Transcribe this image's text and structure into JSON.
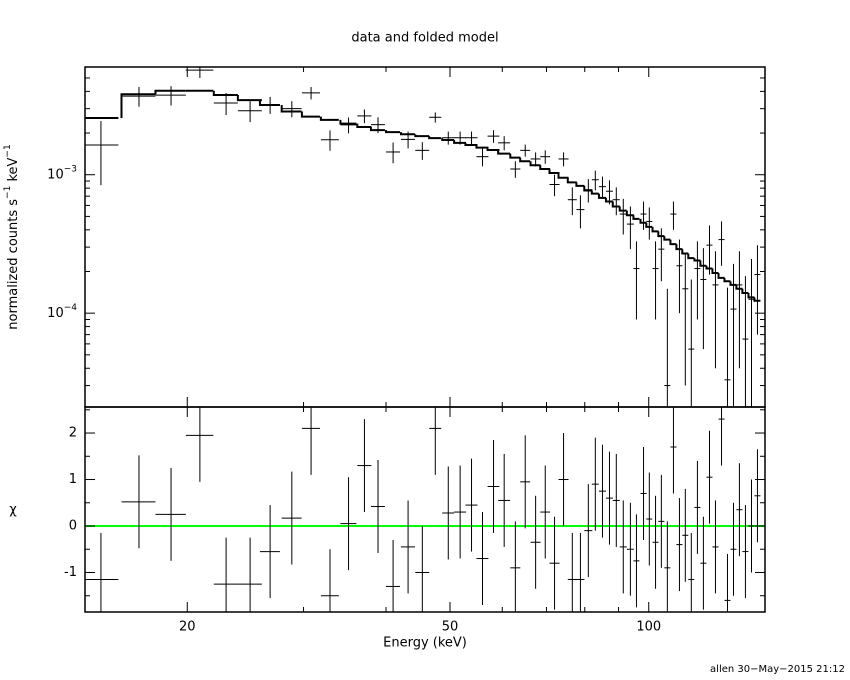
{
  "chart_data": [
    {
      "type": "errorbar",
      "title": "data and folded model",
      "ylabel": [
        "normalized counts s",
        "−1",
        " keV",
        "−1"
      ],
      "log_x": true,
      "log_y": true,
      "xlim": [
        14,
        150
      ],
      "ylim": [
        2.1e-05,
        0.006
      ],
      "yticks": [
        {
          "value": 0.001,
          "label": "10",
          "exponent": "−3"
        },
        {
          "value": 0.0001,
          "label": "10",
          "exponent": "−4"
        }
      ],
      "yminorticks": [
        3e-05,
        4e-05,
        5e-05,
        6e-05,
        7e-05,
        8e-05,
        9e-05,
        0.0002,
        0.0003,
        0.0004,
        0.0005,
        0.0006,
        0.0007,
        0.0008,
        0.0009,
        0.002,
        0.003,
        0.004,
        0.005
      ],
      "data_color": "#000000",
      "model_color": "#000000",
      "x": [
        14.8,
        16.9,
        18.9,
        20.9,
        22.9,
        24.9,
        26.7,
        28.8,
        30.8,
        32.9,
        35.1,
        37.1,
        38.9,
        41.0,
        43.2,
        45.4,
        47.5,
        49.7,
        51.8,
        53.9,
        56.0,
        58.2,
        60.4,
        62.8,
        65.0,
        67.4,
        69.7,
        72.0,
        74.3,
        76.6,
        78.8,
        81.0,
        83.0,
        85.1,
        87.2,
        89.3,
        91.5,
        93.8,
        95.8,
        98.2,
        100.2,
        102.4,
        104.5,
        106.7,
        109.0,
        111.3,
        113.6,
        116.0,
        118.5,
        121.0,
        123.6,
        126.2,
        128.9,
        131.6,
        134.4,
        137.2,
        140.1,
        143.1,
        146.1
      ],
      "xerr": [
        0.93,
        1.0,
        1.0,
        1.0,
        0.96,
        1.04,
        0.93,
        1.0,
        0.97,
        1.03,
        0.98,
        0.91,
        0.95,
        1.0,
        1.06,
        1.1,
        1.0,
        1.04,
        1.08,
        1.13,
        1.17,
        1.2,
        1.26,
        1.1,
        1.13,
        1.18,
        1.2,
        1.26,
        1.3,
        1.2,
        1.1,
        1.13,
        1.0,
        1.04,
        1.06,
        1.09,
        1.12,
        1.15,
        1.0,
        1.03,
        1.05,
        1.07,
        1.1,
        1.12,
        1.14,
        1.17,
        1.19,
        1.21,
        1.24,
        1.27,
        1.29,
        1.32,
        1.35,
        1.38,
        1.41,
        1.44,
        1.47,
        1.5,
        1.53
      ],
      "values": [
        0.00164,
        0.0037,
        0.00376,
        0.0057,
        0.0033,
        0.0029,
        0.0032,
        0.003,
        0.0039,
        0.00179,
        0.00229,
        0.00266,
        0.0023,
        0.00146,
        0.0018,
        0.0015,
        0.0026,
        0.00185,
        0.00185,
        0.00185,
        0.00135,
        0.0019,
        0.0017,
        0.0011,
        0.0015,
        0.0013,
        0.00135,
        0.00085,
        0.0013,
        0.00066,
        0.00056,
        0.00078,
        0.00092,
        0.00082,
        0.00076,
        0.00066,
        0.00052,
        0.00044,
        0.00021,
        0.00052,
        0.00046,
        0.00021,
        0.00029,
        3e-05,
        0.00052,
        0.00022,
        0.00015,
        5.5e-05,
        0.00021,
        0.000175,
        0.00031,
        0.00016,
        0.00034,
        3.3e-05,
        0.000107,
        0.00016,
        6.5e-05,
        0.000126,
        0.00019
      ],
      "errors": [
        0.0008,
        0.0006,
        0.0006,
        0.0007,
        0.0006,
        0.0005,
        0.00045,
        0.0004,
        0.0004,
        0.0003,
        0.0003,
        0.0003,
        0.0003,
        0.00025,
        0.00025,
        0.00022,
        0.00022,
        0.0002,
        0.0002,
        0.0002,
        0.0002,
        0.0002,
        0.0002,
        0.00015,
        0.00015,
        0.00015,
        0.00015,
        0.00015,
        0.00015,
        0.00015,
        0.00015,
        0.00015,
        0.00015,
        0.00015,
        0.00015,
        0.00015,
        0.00015,
        0.00015,
        0.00012,
        0.00012,
        0.00012,
        0.00012,
        0.00012,
        0.00012,
        0.00012,
        0.00012,
        0.00012,
        0.00012,
        0.00012,
        0.00012,
        0.00012,
        0.00012,
        0.00012,
        0.00012,
        0.00012,
        0.00012,
        0.00012,
        0.00012,
        0.00012
      ],
      "model": [
        0.00257,
        0.00381,
        0.00404,
        0.00404,
        0.00377,
        0.00346,
        0.00319,
        0.00286,
        0.00263,
        0.00249,
        0.00234,
        0.00221,
        0.0021,
        0.00203,
        0.00196,
        0.0019,
        0.00184,
        0.00178,
        0.0017,
        0.00164,
        0.00157,
        0.00151,
        0.00142,
        0.00133,
        0.00125,
        0.00117,
        0.0011,
        0.00103,
        0.00095,
        0.00088,
        0.00083,
        0.00077,
        0.00073,
        0.00068,
        0.00064,
        0.00059,
        0.00055,
        0.00051,
        0.00048,
        0.00045,
        0.00042,
        0.00039,
        0.00036,
        0.00034,
        0.000315,
        0.00029,
        0.00027,
        0.00025,
        0.00024,
        0.00022,
        0.00021,
        0.000195,
        0.00018,
        0.00017,
        0.00016,
        0.00015,
        0.00014,
        0.00013,
        0.000123
      ]
    },
    {
      "type": "residual",
      "ylabel": "χ",
      "xlabel": "Energy (keV)",
      "ylim": [
        -1.85,
        2.56
      ],
      "yticks": [
        -1,
        0,
        1,
        2
      ],
      "yminorticks": [
        -1.5,
        -0.5,
        0.5,
        1.5,
        2.5
      ],
      "xticks": [
        20,
        50,
        100
      ],
      "xminorticks": [
        30,
        40,
        60,
        70,
        80,
        90
      ],
      "reference_line": 0,
      "reference_color": "#00ff00",
      "data_color": "#000000",
      "error": 1,
      "values": [
        -1.15,
        0.52,
        0.25,
        1.95,
        -1.25,
        -1.25,
        -0.55,
        0.17,
        2.1,
        -1.5,
        0.05,
        1.3,
        0.42,
        -1.3,
        -0.45,
        -1.0,
        2.1,
        0.28,
        0.3,
        0.45,
        -0.7,
        0.85,
        0.55,
        -0.9,
        0.95,
        -0.35,
        0.3,
        -0.8,
        1.0,
        -1.15,
        -1.15,
        -0.1,
        0.9,
        0.75,
        0.6,
        0.55,
        -0.45,
        -0.5,
        -0.75,
        0.7,
        0.15,
        -0.35,
        0.1,
        -0.9,
        1.7,
        -0.4,
        -0.2,
        -1.15,
        0.4,
        -0.8,
        1.05,
        -0.45,
        2.3,
        -1.6,
        -0.5,
        0.35,
        -0.55,
        0.0,
        0.65
      ]
    }
  ],
  "footer": "allen 30−May−2015 21:12"
}
